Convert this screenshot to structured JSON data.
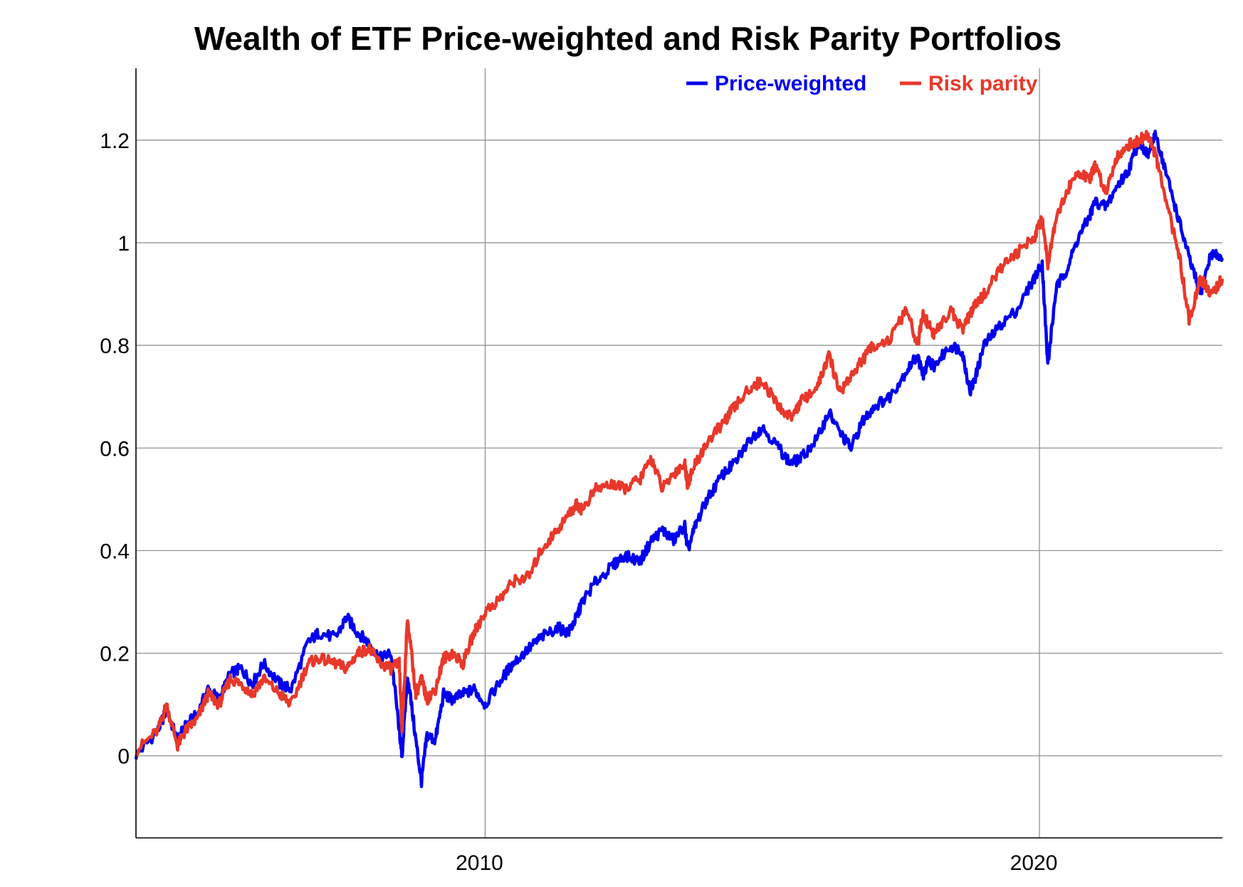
{
  "chart_data": {
    "type": "line",
    "title": "Wealth of ETF Price-weighted and Risk Parity Portfolios",
    "xlabel": "",
    "ylabel": "",
    "xlim": [
      2003.7,
      2023.3
    ],
    "ylim": [
      -0.16,
      1.34
    ],
    "x_ticks": [
      2010,
      2020
    ],
    "x_tick_labels": [
      "2010",
      "2020"
    ],
    "y_ticks": [
      0,
      0.2,
      0.4,
      0.6,
      0.8,
      1.0,
      1.2
    ],
    "y_tick_labels": [
      "0",
      "0.2",
      "0.4",
      "0.6",
      "0.8",
      "1",
      "1.2"
    ],
    "grid": true,
    "legend_position": "top-right",
    "series": [
      {
        "name": "Price-weighted",
        "legend_label": "Price-weighted",
        "color": "#0000ee",
        "x": [
          2003.7,
          2004.1,
          2004.25,
          2004.45,
          2004.6,
          2004.8,
          2005.0,
          2005.2,
          2005.4,
          2005.6,
          2005.8,
          2006.0,
          2006.3,
          2006.5,
          2006.8,
          2007.0,
          2007.3,
          2007.5,
          2007.7,
          2007.9,
          2008.1,
          2008.3,
          2008.45,
          2008.5,
          2008.6,
          2008.75,
          2008.85,
          2008.95,
          2009.1,
          2009.25,
          2009.4,
          2009.6,
          2009.8,
          2010.0,
          2010.3,
          2010.5,
          2010.8,
          2011.0,
          2011.3,
          2011.5,
          2011.65,
          2011.75,
          2012.0,
          2012.3,
          2012.5,
          2012.8,
          2013.0,
          2013.2,
          2013.4,
          2013.6,
          2013.65,
          2013.8,
          2014.0,
          2014.3,
          2014.5,
          2014.8,
          2015.0,
          2015.3,
          2015.5,
          2015.7,
          2016.0,
          2016.2,
          2016.4,
          2016.6,
          2016.8,
          2017.0,
          2017.3,
          2017.6,
          2017.8,
          2017.9,
          2018.0,
          2018.1,
          2018.4,
          2018.6,
          2018.75,
          2018.85,
          2019.0,
          2019.3,
          2019.6,
          2019.9,
          2020.05,
          2020.15,
          2020.3,
          2020.5,
          2020.7,
          2020.9,
          2021.0,
          2021.2,
          2021.4,
          2021.6,
          2021.8,
          2021.95,
          2022.1,
          2022.3,
          2022.5,
          2022.7,
          2022.9,
          2023.1,
          2023.3
        ],
        "values": [
          0.0,
          0.05,
          0.09,
          0.03,
          0.06,
          0.08,
          0.13,
          0.11,
          0.16,
          0.17,
          0.14,
          0.18,
          0.14,
          0.13,
          0.22,
          0.24,
          0.23,
          0.27,
          0.24,
          0.22,
          0.19,
          0.2,
          0.05,
          0.0,
          0.16,
          0.03,
          -0.05,
          0.04,
          0.03,
          0.12,
          0.11,
          0.12,
          0.13,
          0.1,
          0.15,
          0.18,
          0.21,
          0.23,
          0.25,
          0.24,
          0.27,
          0.3,
          0.34,
          0.37,
          0.39,
          0.38,
          0.42,
          0.44,
          0.42,
          0.45,
          0.4,
          0.45,
          0.5,
          0.55,
          0.57,
          0.62,
          0.64,
          0.6,
          0.57,
          0.58,
          0.62,
          0.67,
          0.63,
          0.6,
          0.65,
          0.68,
          0.7,
          0.75,
          0.78,
          0.74,
          0.77,
          0.76,
          0.8,
          0.79,
          0.71,
          0.74,
          0.8,
          0.84,
          0.87,
          0.93,
          0.96,
          0.76,
          0.91,
          0.95,
          1.01,
          1.05,
          1.08,
          1.07,
          1.11,
          1.14,
          1.2,
          1.17,
          1.21,
          1.13,
          1.05,
          0.97,
          0.9,
          0.98,
          0.97
        ]
      },
      {
        "name": "Risk parity",
        "legend_label": "Risk parity",
        "color": "#e8382a",
        "x": [
          2003.7,
          2004.1,
          2004.25,
          2004.45,
          2004.6,
          2004.8,
          2005.0,
          2005.2,
          2005.4,
          2005.6,
          2005.8,
          2006.0,
          2006.3,
          2006.5,
          2006.8,
          2007.0,
          2007.3,
          2007.5,
          2007.7,
          2007.9,
          2008.1,
          2008.3,
          2008.45,
          2008.5,
          2008.6,
          2008.75,
          2008.85,
          2008.95,
          2009.1,
          2009.25,
          2009.4,
          2009.6,
          2009.8,
          2010.0,
          2010.3,
          2010.5,
          2010.8,
          2011.0,
          2011.3,
          2011.5,
          2011.65,
          2011.75,
          2012.0,
          2012.3,
          2012.5,
          2012.8,
          2013.0,
          2013.2,
          2013.4,
          2013.6,
          2013.65,
          2013.8,
          2014.0,
          2014.3,
          2014.5,
          2014.8,
          2015.0,
          2015.3,
          2015.5,
          2015.7,
          2016.0,
          2016.2,
          2016.4,
          2016.6,
          2016.8,
          2017.0,
          2017.3,
          2017.6,
          2017.8,
          2017.9,
          2018.0,
          2018.1,
          2018.4,
          2018.6,
          2018.75,
          2018.85,
          2019.0,
          2019.3,
          2019.6,
          2019.9,
          2020.05,
          2020.15,
          2020.3,
          2020.5,
          2020.7,
          2020.9,
          2021.0,
          2021.2,
          2021.4,
          2021.6,
          2021.8,
          2021.95,
          2022.1,
          2022.3,
          2022.5,
          2022.7,
          2022.9,
          2023.1,
          2023.3
        ],
        "values": [
          0.01,
          0.05,
          0.1,
          0.02,
          0.05,
          0.07,
          0.12,
          0.1,
          0.15,
          0.14,
          0.12,
          0.15,
          0.12,
          0.1,
          0.18,
          0.19,
          0.18,
          0.17,
          0.2,
          0.21,
          0.18,
          0.17,
          0.18,
          0.05,
          0.27,
          0.12,
          0.15,
          0.11,
          0.13,
          0.19,
          0.2,
          0.18,
          0.24,
          0.28,
          0.31,
          0.34,
          0.35,
          0.4,
          0.44,
          0.47,
          0.49,
          0.48,
          0.52,
          0.53,
          0.52,
          0.54,
          0.58,
          0.52,
          0.55,
          0.57,
          0.53,
          0.57,
          0.61,
          0.65,
          0.68,
          0.72,
          0.73,
          0.68,
          0.66,
          0.69,
          0.72,
          0.78,
          0.71,
          0.74,
          0.77,
          0.8,
          0.81,
          0.87,
          0.8,
          0.86,
          0.84,
          0.82,
          0.87,
          0.83,
          0.86,
          0.88,
          0.9,
          0.95,
          0.98,
          1.01,
          1.05,
          0.96,
          1.05,
          1.1,
          1.14,
          1.12,
          1.15,
          1.1,
          1.17,
          1.19,
          1.2,
          1.21,
          1.17,
          1.07,
          0.99,
          0.85,
          0.93,
          0.9,
          0.93
        ]
      }
    ]
  }
}
